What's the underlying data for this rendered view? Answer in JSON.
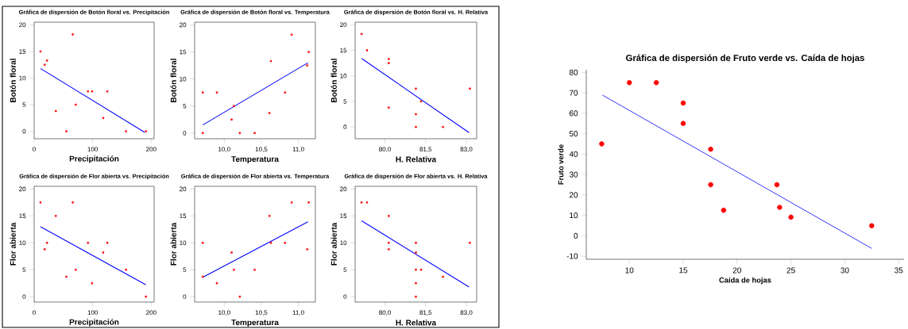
{
  "chart_data": [
    {
      "type": "scatter",
      "title": "Gráfica de dispersión de Botón floral vs. Precipitación",
      "xlabel": "Precipitación",
      "ylabel": "Botón floral",
      "xlim": [
        0,
        205
      ],
      "ylim": [
        -1.4,
        20.5
      ],
      "xticks": [
        0,
        100,
        200
      ],
      "yticks": [
        0,
        5,
        10,
        15,
        20
      ],
      "marker": "square",
      "series": [
        {
          "type": "scatter",
          "color": "#ff0000",
          "x": [
            10.8,
            18,
            22,
            37,
            55,
            66,
            71,
            92,
            99,
            118,
            125,
            157,
            191
          ],
          "values": [
            15,
            12.5,
            13.3,
            3.8,
            0,
            18.2,
            5,
            7.5,
            7.5,
            2.5,
            7.5,
            0,
            0
          ]
        },
        {
          "type": "line",
          "marker": "none",
          "color": "#0000ff",
          "x": [
            10.8,
            189
          ],
          "values": [
            11.8,
            -0.2
          ]
        }
      ]
    },
    {
      "type": "scatter",
      "title": "Gráfica de dispersión de Botón floral vs. Temperatura",
      "xlabel": "Temperatura",
      "ylabel": "Botón floral",
      "xlim": [
        9.6,
        11.23
      ],
      "ylim": [
        -1.05,
        20.5
      ],
      "xticks": [
        {
          "value": 10,
          "label": "10,0"
        },
        {
          "value": 10.5,
          "label": "10,5"
        },
        {
          "value": 11,
          "label": "11,0"
        }
      ],
      "yticks": [
        0,
        5,
        10,
        15,
        20
      ],
      "marker": "square",
      "series": [
        {
          "type": "scatter",
          "color": "#ff0000",
          "x": [
            9.71,
            9.71,
            9.9,
            10.1,
            10.13,
            10.21,
            10.41,
            10.61,
            10.63,
            10.82,
            10.91,
            11.12,
            11.14
          ],
          "values": [
            7.5,
            0,
            7.5,
            2.5,
            5,
            0,
            0,
            3.7,
            13.3,
            7.5,
            18.2,
            12.5,
            15
          ]
        },
        {
          "type": "line",
          "marker": "none",
          "color": "#0000ff",
          "x": [
            9.71,
            11.13
          ],
          "values": [
            1.5,
            13.0
          ]
        }
      ]
    },
    {
      "type": "scatter",
      "title": "Gráfica de dispersión de Botón floral vs. H. Relativa",
      "xlabel": "H. Relativa",
      "ylabel": "Botón floral",
      "xlim": [
        78.9,
        83.38
      ],
      "ylim": [
        -2.3,
        20.5
      ],
      "xticks": [
        {
          "value": 80,
          "label": "80,0"
        },
        {
          "value": 81.5,
          "label": "81,5"
        },
        {
          "value": 83,
          "label": "83,0"
        }
      ],
      "yticks": [
        0,
        5,
        10,
        15,
        20
      ],
      "marker": "square",
      "series": [
        {
          "type": "scatter",
          "color": "#ff0000",
          "x": [
            79.14,
            79.34,
            80.14,
            80.14,
            80.14,
            81.14,
            81.14,
            81.14,
            81.33,
            82.14,
            83.13
          ],
          "values": [
            18.2,
            15,
            13.3,
            12.5,
            3.8,
            7.5,
            2.5,
            0,
            5,
            0,
            7.5
          ]
        },
        {
          "type": "line",
          "marker": "none",
          "color": "#0000ff",
          "x": [
            79.14,
            83.1
          ],
          "values": [
            13.4,
            -1.1
          ]
        }
      ]
    },
    {
      "type": "scatter",
      "title": "Gráfica de dispersión de Flor abierta vs. Precipitación",
      "xlabel": "Precipitación",
      "ylabel": "Flor abierta",
      "xlim": [
        0,
        205
      ],
      "ylim": [
        -1,
        20.5
      ],
      "xticks": [
        0,
        100,
        200
      ],
      "yticks": [
        0,
        5,
        10,
        15,
        20
      ],
      "marker": "square",
      "series": [
        {
          "type": "scatter",
          "color": "#ff0000",
          "x": [
            10.8,
            18,
            22,
            37,
            55,
            66,
            71,
            92,
            99,
            118,
            125,
            157,
            191
          ],
          "values": [
            17.5,
            8.8,
            10,
            15,
            3.7,
            17.5,
            5,
            10,
            2.5,
            8.2,
            10,
            5,
            0
          ]
        },
        {
          "type": "line",
          "marker": "none",
          "color": "#0000ff",
          "x": [
            10.8,
            191
          ],
          "values": [
            13.0,
            2.2
          ]
        }
      ]
    },
    {
      "type": "scatter",
      "title": "Gráfica de dispersión de Flor abierta vs. Temperatura",
      "xlabel": "Temperatura",
      "ylabel": "Flor abierta",
      "xlim": [
        9.6,
        11.23
      ],
      "ylim": [
        -1,
        20.5
      ],
      "xticks": [
        {
          "value": 10,
          "label": "10,0"
        },
        {
          "value": 10.5,
          "label": "10,5"
        },
        {
          "value": 11,
          "label": "11,0"
        }
      ],
      "yticks": [
        0,
        5,
        10,
        15,
        20
      ],
      "marker": "square",
      "series": [
        {
          "type": "scatter",
          "color": "#ff0000",
          "x": [
            9.71,
            9.71,
            9.9,
            10.1,
            10.13,
            10.21,
            10.41,
            10.61,
            10.63,
            10.82,
            10.91,
            11.12,
            11.14
          ],
          "values": [
            10,
            3.7,
            2.5,
            8.2,
            5,
            0,
            5,
            15,
            10,
            10,
            17.5,
            8.8,
            17.5
          ]
        },
        {
          "type": "line",
          "marker": "none",
          "color": "#0000ff",
          "x": [
            9.71,
            11.13
          ],
          "values": [
            3.6,
            13.9
          ]
        }
      ]
    },
    {
      "type": "scatter",
      "title": "Gráfica de dispersión de Flor abierta vs. H. Relativa",
      "xlabel": "H. Relativa",
      "ylabel": "Flor abierta",
      "xlim": [
        78.9,
        83.38
      ],
      "ylim": [
        -1,
        20.5
      ],
      "xticks": [
        {
          "value": 80,
          "label": "80,0"
        },
        {
          "value": 81.5,
          "label": "81,5"
        },
        {
          "value": 83,
          "label": "83,0"
        }
      ],
      "yticks": [
        0,
        5,
        10,
        15,
        20
      ],
      "marker": "square",
      "series": [
        {
          "type": "scatter",
          "color": "#ff0000",
          "x": [
            79.14,
            79.34,
            80.14,
            80.14,
            80.14,
            81.14,
            81.14,
            81.14,
            81.14,
            81.14,
            81.33,
            82.14,
            83.13
          ],
          "values": [
            17.5,
            17.5,
            15,
            10,
            8.8,
            10,
            8.2,
            5,
            2.5,
            0,
            5,
            3.7,
            10
          ]
        },
        {
          "type": "line",
          "marker": "none",
          "color": "#0000ff",
          "x": [
            79.14,
            83.1
          ],
          "values": [
            14.1,
            1.8
          ]
        }
      ]
    },
    {
      "type": "scatter",
      "title": "Gráfica de dispersión de Fruto verde vs. Caída de hojas",
      "xlabel": "Caída de hojas",
      "ylabel": "Fruto verde",
      "xlim": [
        6,
        35.5
      ],
      "ylim": [
        -11.5,
        81.3
      ],
      "xticks": [
        10,
        15,
        20,
        25,
        30,
        35
      ],
      "yticks": [
        -10,
        0,
        10,
        20,
        30,
        40,
        50,
        60,
        70,
        80
      ],
      "marker": "circle",
      "series": [
        {
          "type": "scatter",
          "color": "#ff0000",
          "x": [
            7.43,
            10,
            12.5,
            15,
            15,
            17.55,
            17.55,
            18.75,
            23.7,
            23.95,
            25,
            32.5
          ],
          "values": [
            45,
            75,
            75,
            65,
            55,
            42.4,
            25,
            12.5,
            25,
            13.9,
            9.1,
            4.9
          ]
        },
        {
          "type": "line",
          "marker": "none",
          "color": "#0000ff",
          "x": [
            7.5,
            32.5
          ],
          "values": [
            68.9,
            -6.2
          ]
        }
      ]
    }
  ]
}
